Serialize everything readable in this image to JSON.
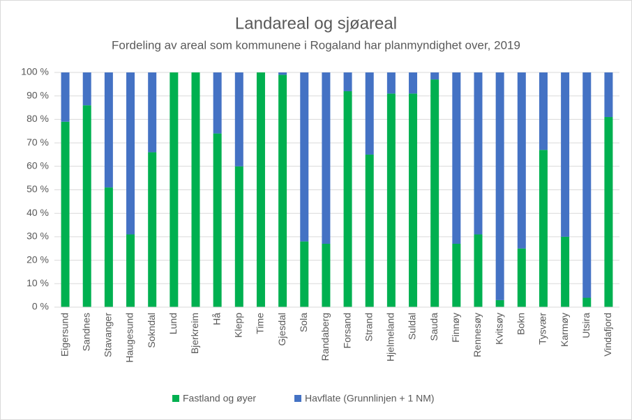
{
  "chart_data": {
    "type": "stacked_bar",
    "title": "Landareal og sjøareal",
    "subtitle": "Fordeling av areal som kommunene i Rogaland har planmyndighet over, 2019",
    "categories": [
      "Eigersund",
      "Sandnes",
      "Stavanger",
      "Haugesund",
      "Sokndal",
      "Lund",
      "Bjerkreim",
      "Hå",
      "Klepp",
      "Time",
      "Gjesdal",
      "Sola",
      "Randaberg",
      "Forsand",
      "Strand",
      "Hjelmeland",
      "Suldal",
      "Sauda",
      "Finnøy",
      "Rennesøy",
      "Kvitsøy",
      "Bokn",
      "Tysvær",
      "Karmøy",
      "Utsira",
      "Vindafjord"
    ],
    "series": [
      {
        "name": "Fastland og øyer",
        "color": "#00b050",
        "values": [
          79,
          86,
          51,
          31,
          66,
          100,
          100,
          74,
          60,
          100,
          99,
          28,
          27,
          92,
          65,
          91,
          91,
          97,
          27,
          31,
          3,
          25,
          67,
          30,
          4,
          81
        ]
      },
      {
        "name": "Havflate (Grunnlinjen + 1 NM)",
        "color": "#4472c4",
        "values": [
          21,
          14,
          49,
          69,
          34,
          0,
          0,
          26,
          40,
          0,
          1,
          72,
          73,
          8,
          35,
          9,
          9,
          3,
          73,
          69,
          97,
          75,
          33,
          70,
          96,
          19
        ]
      }
    ],
    "ylim": [
      0,
      100
    ],
    "yticks": [
      {
        "value": 0,
        "label": "0 %"
      },
      {
        "value": 10,
        "label": "10 %"
      },
      {
        "value": 20,
        "label": "20 %"
      },
      {
        "value": 30,
        "label": "30 %"
      },
      {
        "value": 40,
        "label": "40 %"
      },
      {
        "value": 50,
        "label": "50 %"
      },
      {
        "value": 60,
        "label": "60 %"
      },
      {
        "value": 70,
        "label": "70 %"
      },
      {
        "value": 80,
        "label": "80 %"
      },
      {
        "value": 90,
        "label": "90 %"
      },
      {
        "value": 100,
        "label": "100 %"
      }
    ],
    "grid": true,
    "legend": "bottom"
  }
}
